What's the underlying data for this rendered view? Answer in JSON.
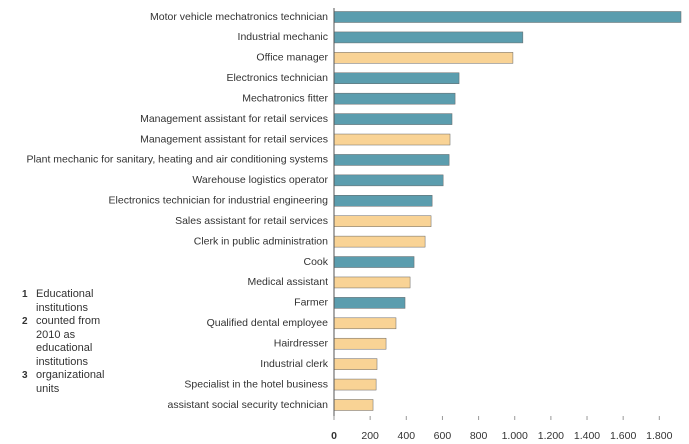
{
  "chart_data": {
    "type": "bar",
    "orientation": "horizontal",
    "categories": [
      "Motor vehicle mechatronics technician",
      "Industrial mechanic",
      "Office manager",
      "Electronics technician",
      "Mechatronics fitter",
      "Management assistant for retail services",
      "Management assistant for retail services",
      "Plant mechanic for sanitary, heating and air conditioning systems",
      "Warehouse logistics operator",
      "Electronics technician for industrial engineering",
      "Sales assistant for retail services",
      "Clerk in public administration",
      "Cook",
      "Medical assistant",
      "Farmer",
      "Qualified dental employee",
      "Hairdresser",
      "Industrial clerk",
      "Specialist in the hotel business",
      "assistant social security technician"
    ],
    "values": [
      1920,
      1045,
      990,
      692,
      670,
      653,
      642,
      637,
      604,
      543,
      537,
      504,
      443,
      421,
      393,
      343,
      288,
      238,
      233,
      216
    ],
    "colors": [
      "#5b9dae",
      "#5b9dae",
      "#f9d395",
      "#5b9dae",
      "#5b9dae",
      "#5b9dae",
      "#f9d395",
      "#5b9dae",
      "#5b9dae",
      "#5b9dae",
      "#f9d395",
      "#f9d395",
      "#5b9dae",
      "#f9d395",
      "#5b9dae",
      "#f9d395",
      "#f9d395",
      "#f9d395",
      "#f9d395",
      "#f9d395"
    ],
    "xlim": [
      0,
      1920
    ],
    "xticks": [
      0,
      200,
      400,
      600,
      800,
      {
        "value": 1000,
        "label": "1.000"
      },
      {
        "value": 1200,
        "label": "1.200"
      },
      {
        "value": 1400,
        "label": "1.400"
      },
      {
        "value": 1600,
        "label": "1.600"
      },
      {
        "value": 1800,
        "label": "1.800"
      }
    ],
    "notes": [
      {
        "number": "1",
        "text": "Educational institutions"
      },
      {
        "number": "2",
        "text": "counted from 2010 as educational institutions"
      },
      {
        "number": "3",
        "text": "organizational units"
      }
    ]
  }
}
